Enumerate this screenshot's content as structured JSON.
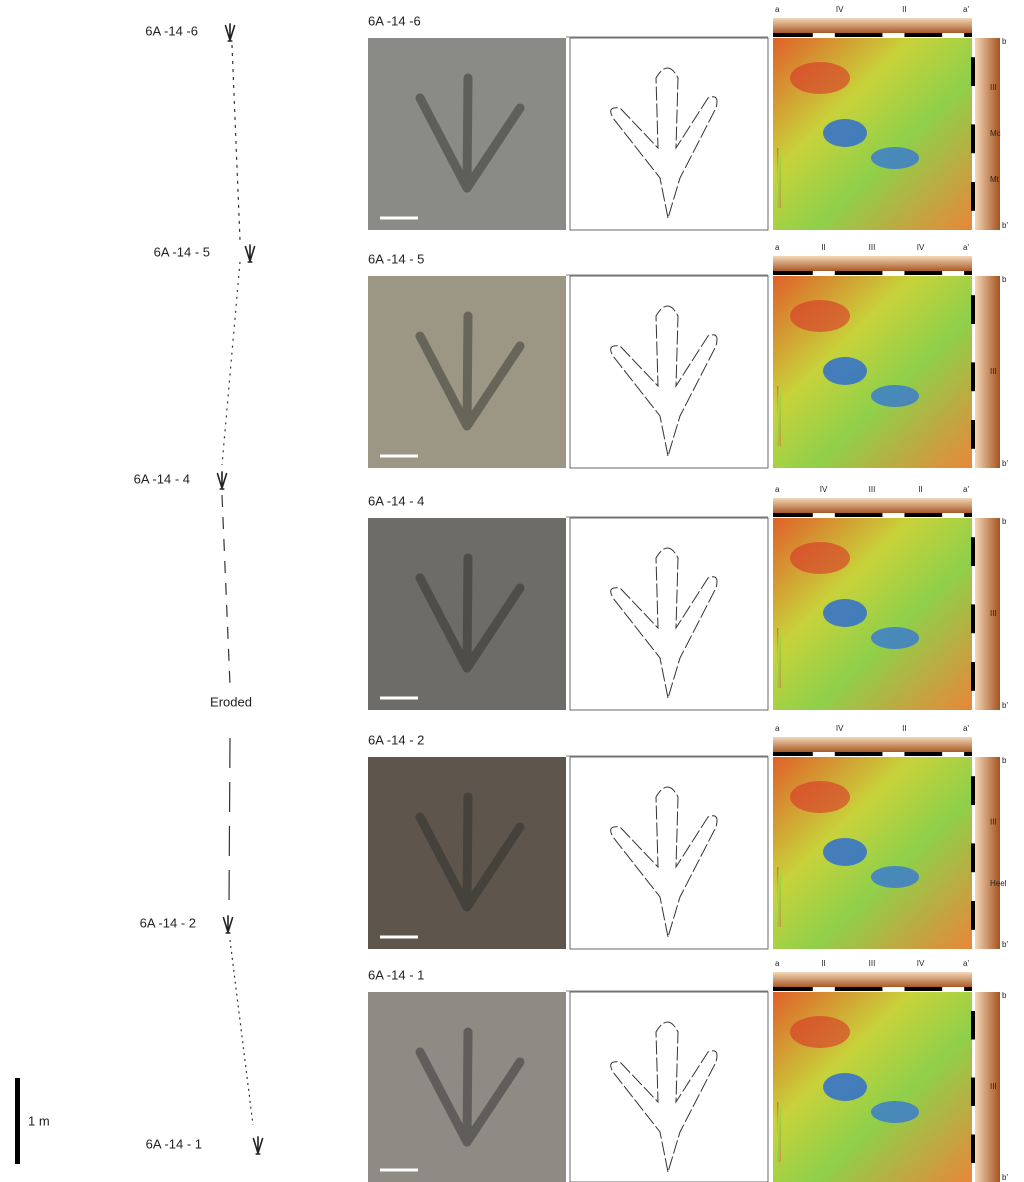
{
  "trackway": {
    "labels": [
      "6A -14 -6",
      "6A -14 - 5",
      "6A -14 - 4",
      "Eroded",
      "6A -14 - 2",
      "6A -14 - 1"
    ],
    "scale_label": "1 m"
  },
  "rows": [
    {
      "title": "6A -14 -6",
      "top_labels": [
        "a",
        "IV",
        "II",
        "a'"
      ],
      "side_labels": [
        "b",
        "III",
        "Mc",
        "Mt",
        "b'"
      ]
    },
    {
      "title": "6A -14 - 5",
      "top_labels": [
        "a",
        "II",
        "III",
        "IV",
        "a'"
      ],
      "side_labels": [
        "b",
        "III",
        "b'"
      ]
    },
    {
      "title": "6A -14 - 4",
      "top_labels": [
        "a",
        "IV",
        "III",
        "II",
        "a'"
      ],
      "side_labels": [
        "b",
        "III",
        "b'"
      ]
    },
    {
      "title": "6A -14 - 2",
      "top_labels": [
        "a",
        "IV",
        "II",
        "a'"
      ],
      "side_labels": [
        "b",
        "III",
        "Heel",
        "b'"
      ]
    },
    {
      "title": "6A -14 - 1",
      "top_labels": [
        "a",
        "II",
        "III",
        "IV",
        "a'"
      ],
      "side_labels": [
        "b",
        "III",
        "b'"
      ]
    }
  ]
}
